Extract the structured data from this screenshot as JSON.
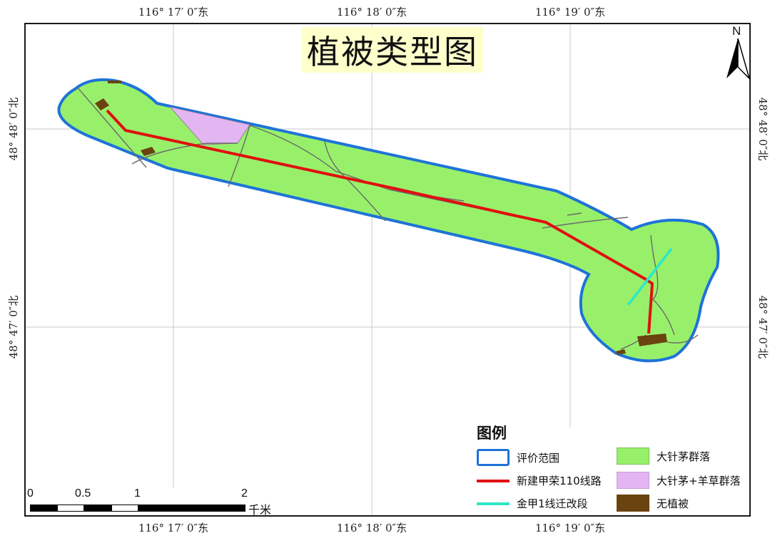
{
  "title": "植被类型图",
  "north_label": "N",
  "graticule": {
    "lon_labels": [
      "116° 17′ 0″东",
      "116° 18′ 0″东",
      "116° 19′ 0″东"
    ],
    "lat_labels": [
      "48° 48′ 0″北",
      "48° 47′ 0″北"
    ]
  },
  "legend": {
    "title": "图例",
    "items": [
      {
        "label": "评价范围",
        "symbol": "outline",
        "color": "#1e73d8"
      },
      {
        "label": "新建甲荣110线路",
        "symbol": "line",
        "color": "#e01010"
      },
      {
        "label": "金甲1线迁改段",
        "symbol": "line",
        "color": "#2ee6c8"
      },
      {
        "label": "大针茅群落",
        "symbol": "fill",
        "color": "#98f06a"
      },
      {
        "label": "大针茅+羊草群落",
        "symbol": "fill",
        "color": "#e3b6f2"
      },
      {
        "label": "无植被",
        "symbol": "fill",
        "color": "#6b430f"
      }
    ]
  },
  "scale_bar": {
    "labels": [
      "0",
      "0.5",
      "1",
      "2"
    ],
    "unit": "千米"
  },
  "colors": {
    "boundary": "#1e73d8",
    "grass": "#98f06a",
    "mixed": "#e3b6f2",
    "bare": "#6b430f",
    "new_line": "#e01010",
    "relocated_line": "#2ee6c8",
    "roads": "#6a6a6a",
    "grid": "#c8c8c8"
  }
}
